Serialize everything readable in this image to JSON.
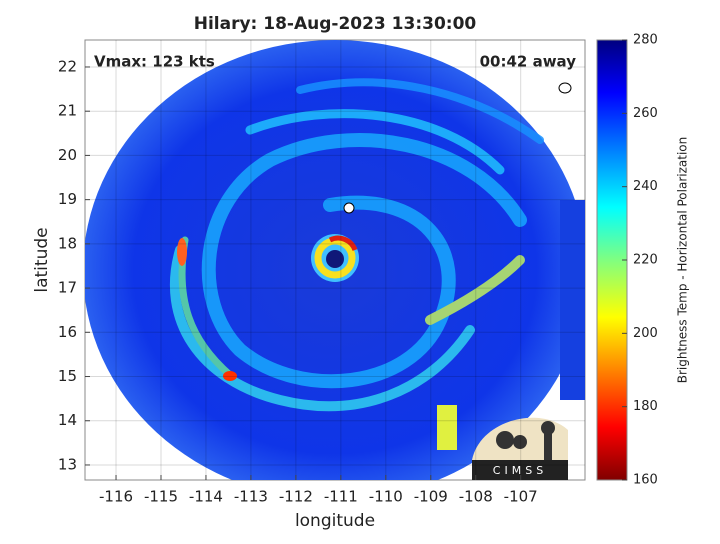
{
  "title": "Hilary: 18-Aug-2023 13:30:00",
  "annotations": {
    "vmax": "Vmax: 123 kts",
    "distance": "00:42 away"
  },
  "x_axis": {
    "label": "longitude",
    "lim": [
      -116.69,
      -105.57
    ],
    "ticks": [
      -116,
      -115,
      -114,
      -113,
      -112,
      -111,
      -110,
      -109,
      -108,
      -107
    ]
  },
  "y_axis": {
    "label": "latitude",
    "lim": [
      12.66,
      22.61
    ],
    "ticks": [
      13,
      14,
      15,
      16,
      17,
      18,
      19,
      20,
      21,
      22
    ]
  },
  "colorbar": {
    "label": "Brightness Temp - Horizontal Polarization",
    "lim": [
      160,
      280
    ],
    "ticks": [
      160,
      180,
      200,
      220,
      240,
      260,
      280
    ]
  },
  "logo": "CIMSS"
}
